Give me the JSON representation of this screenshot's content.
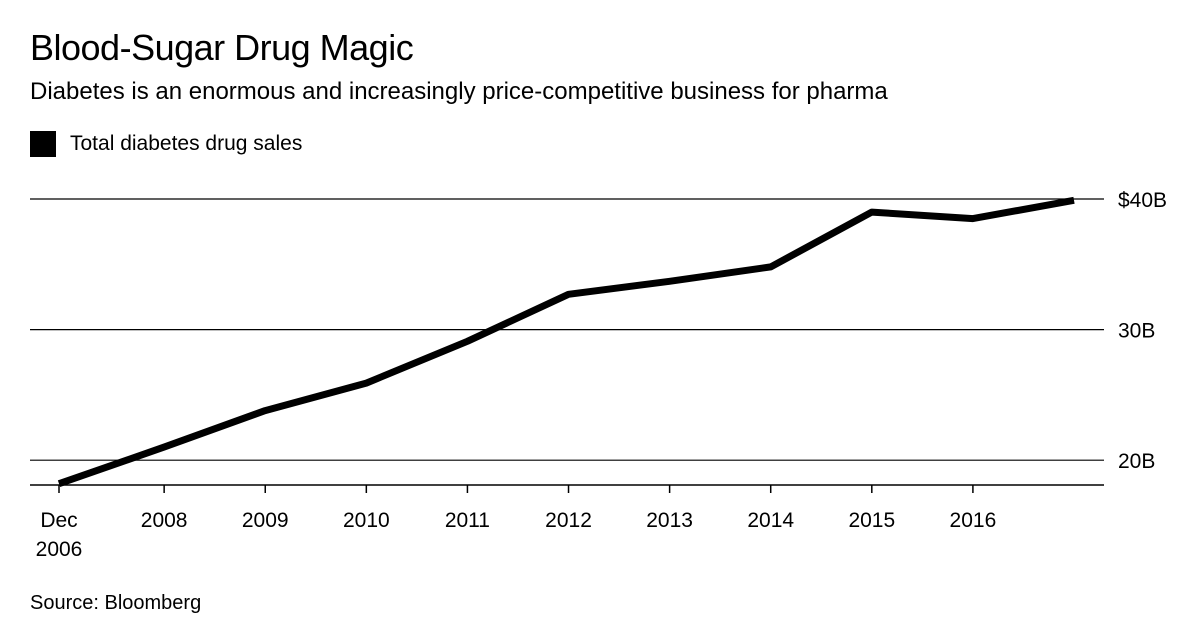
{
  "header": {
    "title": "Blood-Sugar Drug Magic",
    "subtitle": "Diabetes is an enormous and increasingly price-competitive business for pharma"
  },
  "legend": {
    "label": "Total diabetes drug sales",
    "color": "#000000"
  },
  "footer": {
    "source": "Source: Bloomberg"
  },
  "chart_data": {
    "type": "line",
    "title": "Blood-Sugar Drug Magic",
    "subtitle": "Diabetes is an enormous and increasingly price-competitive business for pharma",
    "xlabel": "",
    "ylabel": "",
    "grid": true,
    "legend_placement": "top-left",
    "ylim": [
      18.1,
      40
    ],
    "xlim": [
      2006.96,
      2017.0
    ],
    "y_ticks": [
      {
        "value": 20,
        "label": "20B"
      },
      {
        "value": 30,
        "label": "30B"
      },
      {
        "value": 40,
        "label": "$40B"
      }
    ],
    "x_ticks": [
      {
        "value": 2006.96,
        "label": "Dec",
        "label2": "2006"
      },
      {
        "value": 2008,
        "label": "2008"
      },
      {
        "value": 2009,
        "label": "2009"
      },
      {
        "value": 2010,
        "label": "2010"
      },
      {
        "value": 2011,
        "label": "2011"
      },
      {
        "value": 2012,
        "label": "2012"
      },
      {
        "value": 2013,
        "label": "2013"
      },
      {
        "value": 2014,
        "label": "2014"
      },
      {
        "value": 2015,
        "label": "2015"
      },
      {
        "value": 2016,
        "label": "2016"
      }
    ],
    "series": [
      {
        "name": "Total diabetes drug sales",
        "color": "#000000",
        "x": [
          2006.96,
          2008,
          2009,
          2010,
          2011,
          2012,
          2013,
          2014,
          2015,
          2016,
          2017
        ],
        "values": [
          18.2,
          21.0,
          23.8,
          25.9,
          29.1,
          32.7,
          33.7,
          34.8,
          39.0,
          38.5,
          39.9
        ]
      }
    ]
  }
}
